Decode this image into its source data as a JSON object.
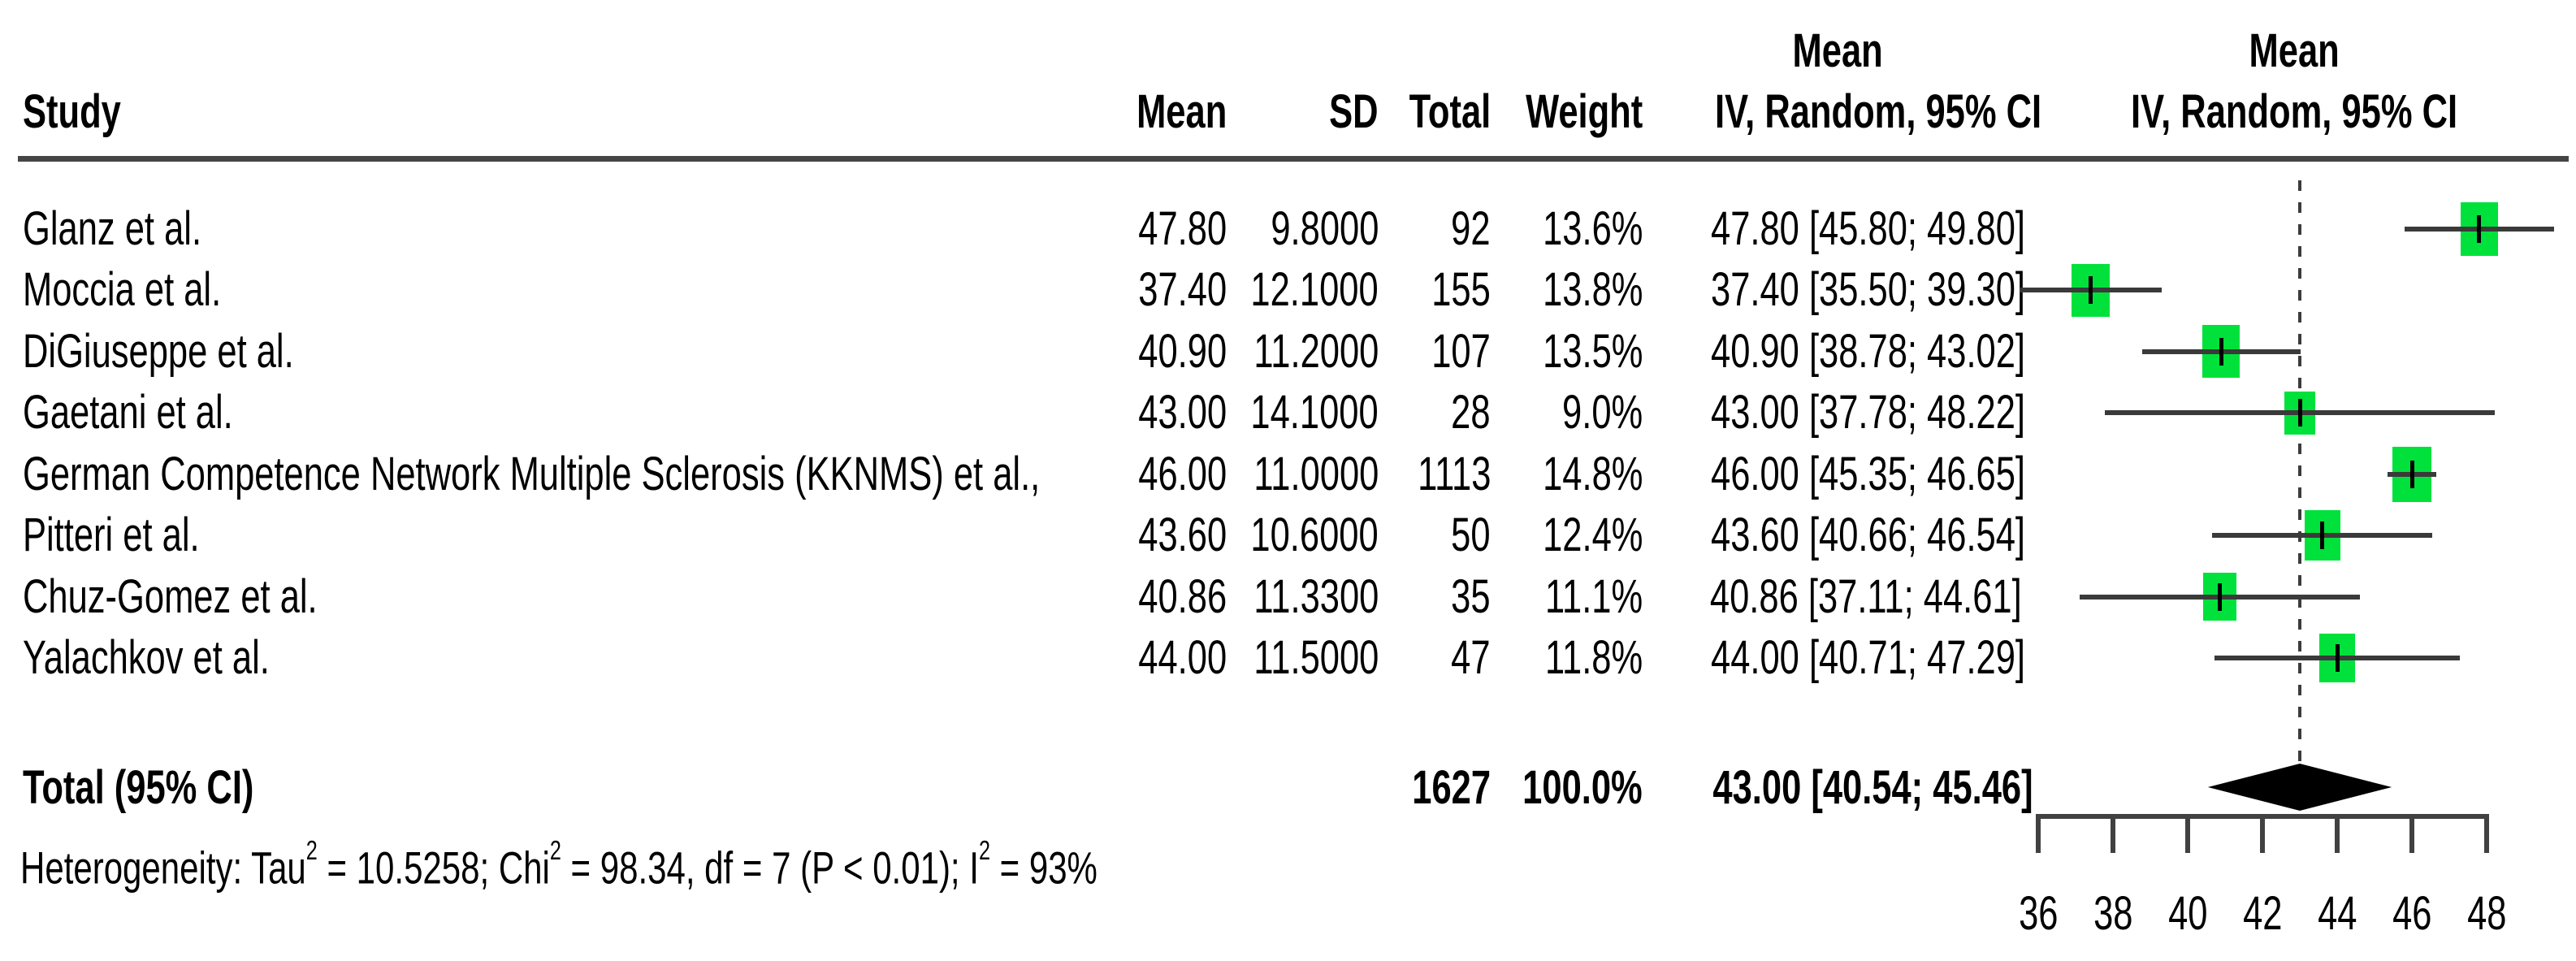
{
  "table": {
    "headers": {
      "study": "Study",
      "mean": "Mean",
      "sd": "SD",
      "total": "Total",
      "weight": "Weight",
      "ci_top": "Mean",
      "ci": "IV, Random, 95% CI"
    },
    "plot_header": {
      "top": "Mean",
      "bottom": "IV, Random, 95% CI"
    },
    "total_row": {
      "label": "Total (95% CI)",
      "total": "1627",
      "weight": "100.0%",
      "ci_text": "43.00 [40.54; 45.46]"
    },
    "heterogeneity_segments": [
      {
        "t": "Heterogeneity: Tau"
      },
      {
        "sup": "2"
      },
      {
        "t": " = 10.5258; Chi"
      },
      {
        "sup": "2"
      },
      {
        "t": " = 98.34, df = 7 (P < 0.01); I"
      },
      {
        "sup": "2"
      },
      {
        "t": " = 93%"
      }
    ]
  },
  "chart_data": {
    "type": "forest",
    "effect_measure": "Mean",
    "model": "IV, Random, 95% CI",
    "x_ticks": [
      36,
      38,
      40,
      42,
      44,
      46,
      48
    ],
    "xlim": [
      36,
      48
    ],
    "reference_line": 43.0,
    "marker_color": "#00e13b",
    "line_color": "#3a3a3a",
    "diamond_color": "#000000",
    "studies": [
      {
        "name": "Glanz et al.",
        "mean": "47.80",
        "sd": "9.8000",
        "total": "92",
        "weight": "13.6%",
        "ci_text": "47.80 [45.80; 49.80]",
        "mean_val": 47.8,
        "ci_low": 45.8,
        "ci_high": 49.8,
        "weight_val": 13.6
      },
      {
        "name": "Moccia et al.",
        "mean": "37.40",
        "sd": "12.1000",
        "total": "155",
        "weight": "13.8%",
        "ci_text": "37.40 [35.50; 39.30]",
        "mean_val": 37.4,
        "ci_low": 35.5,
        "ci_high": 39.3,
        "weight_val": 13.8
      },
      {
        "name": "DiGiuseppe et al.",
        "mean": "40.90",
        "sd": "11.2000",
        "total": "107",
        "weight": "13.5%",
        "ci_text": "40.90 [38.78; 43.02]",
        "mean_val": 40.9,
        "ci_low": 38.78,
        "ci_high": 43.02,
        "weight_val": 13.5
      },
      {
        "name": "Gaetani et al.",
        "mean": "43.00",
        "sd": "14.1000",
        "total": "28",
        "weight": "9.0%",
        "ci_text": "43.00 [37.78; 48.22]",
        "mean_val": 43.0,
        "ci_low": 37.78,
        "ci_high": 48.22,
        "weight_val": 9.0
      },
      {
        "name": "German Competence Network Multiple Sclerosis (KKNMS) et al.,",
        "mean": "46.00",
        "sd": "11.0000",
        "total": "1113",
        "weight": "14.8%",
        "ci_text": "46.00 [45.35; 46.65]",
        "mean_val": 46.0,
        "ci_low": 45.35,
        "ci_high": 46.65,
        "weight_val": 14.8
      },
      {
        "name": "Pitteri et al.",
        "mean": "43.60",
        "sd": "10.6000",
        "total": "50",
        "weight": "12.4%",
        "ci_text": "43.60 [40.66; 46.54]",
        "mean_val": 43.6,
        "ci_low": 40.66,
        "ci_high": 46.54,
        "weight_val": 12.4
      },
      {
        "name": "Chuz-Gomez et al.",
        "mean": "40.86",
        "sd": "11.3300",
        "total": "35",
        "weight": "11.1%",
        "ci_text": "40.86 [37.11; 44.61]",
        "mean_val": 40.86,
        "ci_low": 37.11,
        "ci_high": 44.61,
        "weight_val": 11.1
      },
      {
        "name": "Yalachkov et al.",
        "mean": "44.00",
        "sd": "11.5000",
        "total": "47",
        "weight": "11.8%",
        "ci_text": "44.00 [40.71; 47.29]",
        "mean_val": 44.0,
        "ci_low": 40.71,
        "ci_high": 47.29,
        "weight_val": 11.8
      }
    ],
    "pooled": {
      "label": "Total (95% CI)",
      "mean_val": 43.0,
      "ci_low": 40.54,
      "ci_high": 45.46,
      "total": 1627,
      "weight_val": 100.0
    }
  }
}
